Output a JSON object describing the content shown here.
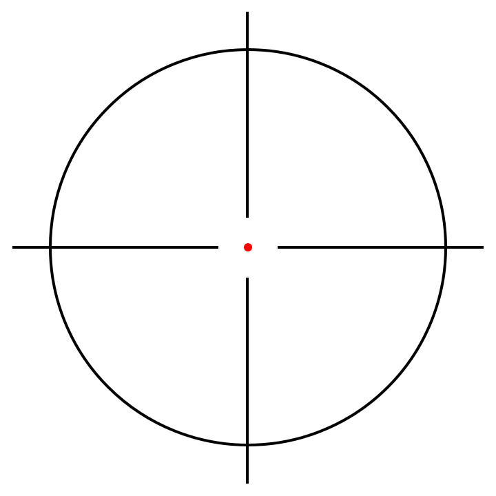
{
  "reticle": {
    "style": "crosshair-with-circle",
    "colors": {
      "background": "#ffffff",
      "reticle": "#000000",
      "center_dot": "#ff0000"
    },
    "icons": {
      "ring": "reticle-ring-icon",
      "crosshair": "crosshair-icon",
      "center_dot": "center-dot-icon"
    }
  }
}
